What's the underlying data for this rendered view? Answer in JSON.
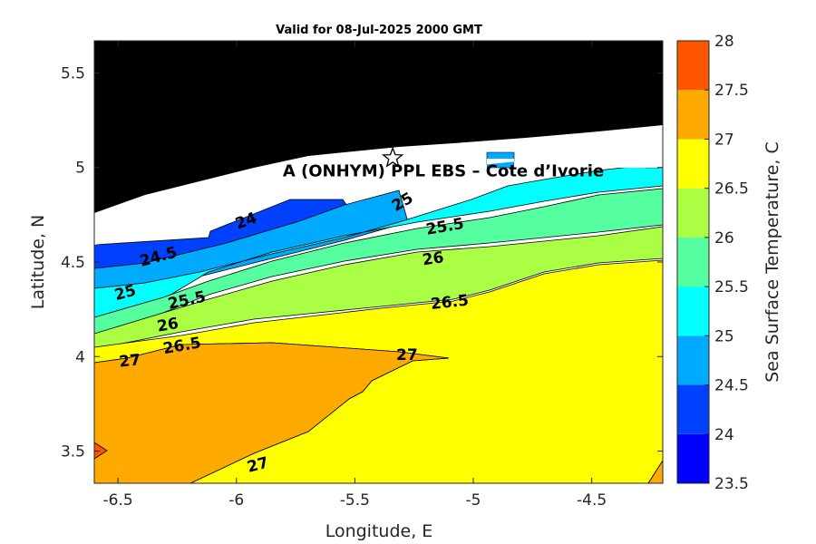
{
  "chart_data": {
    "type": "contour",
    "title": "Valid for 08-Jul-2025 2000 GMT",
    "xlabel": "Longitude, E",
    "ylabel": "Latitude, N",
    "xlim": [
      -6.6,
      -4.2
    ],
    "ylim": [
      3.33,
      5.67
    ],
    "xticks": [
      -6.5,
      -6,
      -5.5,
      -5,
      -4.5
    ],
    "xtick_labels": [
      "-6.5",
      "-6",
      "-5.5",
      "-5",
      "-4.5"
    ],
    "yticks": [
      3.5,
      4,
      4.5,
      5,
      5.5
    ],
    "ytick_labels": [
      "3.5",
      "4",
      "4.5",
      "5",
      "5.5"
    ],
    "colorbar": {
      "label": "Sea Surface Temperature, C",
      "levels": [
        23.5,
        24,
        24.5,
        25,
        25.5,
        26,
        26.5,
        27,
        27.5,
        28
      ],
      "tick_labels": [
        "23.5",
        "24",
        "24.5",
        "25",
        "25.5",
        "26",
        "26.5",
        "27",
        "27.5",
        "28"
      ],
      "colors": [
        "#0000ff",
        "#0040ff",
        "#00aaff",
        "#00ffff",
        "#55ff9f",
        "#aaff44",
        "#ffff00",
        "#ffaa00",
        "#ff5500"
      ]
    },
    "contour_labels": [
      {
        "text": "24",
        "lon": -5.96,
        "lat": 4.72
      },
      {
        "text": "24.5",
        "lon": -6.33,
        "lat": 4.53
      },
      {
        "text": "25",
        "lon": -6.47,
        "lat": 4.34
      },
      {
        "text": "25",
        "lon": -5.3,
        "lat": 4.82
      },
      {
        "text": "25.5",
        "lon": -6.21,
        "lat": 4.3
      },
      {
        "text": "25.5",
        "lon": -5.12,
        "lat": 4.69
      },
      {
        "text": "26",
        "lon": -6.29,
        "lat": 4.17
      },
      {
        "text": "26",
        "lon": -5.17,
        "lat": 4.52
      },
      {
        "text": "26.5",
        "lon": -6.23,
        "lat": 4.06
      },
      {
        "text": "26.5",
        "lon": -5.1,
        "lat": 4.29
      },
      {
        "text": "27",
        "lon": -6.45,
        "lat": 3.98
      },
      {
        "text": "27",
        "lon": -5.28,
        "lat": 4.01
      },
      {
        "text": "27",
        "lon": -5.91,
        "lat": 3.43
      }
    ],
    "site": {
      "label": "A (ONHYM) PPL EBS  – Cote d’Ivorie",
      "marker": "star",
      "lon": -5.34,
      "lat": 5.05
    },
    "grid": false,
    "land_color": "#000000",
    "masked_color": "#ffffff"
  }
}
